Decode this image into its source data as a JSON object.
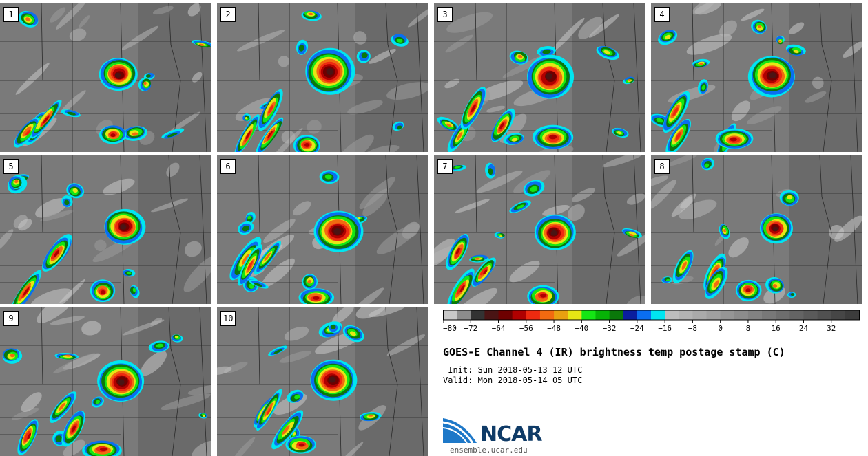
{
  "panels": [
    {
      "label": "1"
    },
    {
      "label": "2"
    },
    {
      "label": "3"
    },
    {
      "label": "4"
    },
    {
      "label": "5"
    },
    {
      "label": "6"
    },
    {
      "label": "7"
    },
    {
      "label": "8"
    },
    {
      "label": "9"
    },
    {
      "label": "10"
    }
  ],
  "chart_data": {
    "type": "heatmap",
    "title": "GOES-E Channel 4 (IR) brightness temp postage stamp (C)",
    "units": "C",
    "colorbar": {
      "min": -80,
      "max": 40,
      "step": 4,
      "tick_values": [
        -80,
        -72,
        -64,
        -56,
        -48,
        -40,
        -32,
        -24,
        -16,
        -8,
        0,
        8,
        16,
        24,
        32
      ],
      "tick_labels": [
        "−80",
        "−72",
        "−64",
        "−56",
        "−48",
        "−40",
        "−32",
        "−24",
        "−16",
        "−8",
        "0",
        "8",
        "16",
        "24",
        "32"
      ],
      "colors": [
        "#c8c8c8",
        "#8c8c8c",
        "#333333",
        "#4a1414",
        "#6e0000",
        "#b00000",
        "#ee2a10",
        "#f26a10",
        "#e8a010",
        "#e6e614",
        "#14e614",
        "#06b406",
        "#0a780a",
        "#0a1e9e",
        "#0a6ef0",
        "#00e6f0",
        "#bebebe",
        "#b4b4b4",
        "#aaaaaa",
        "#a0a0a0",
        "#969696",
        "#8c8c8c",
        "#828282",
        "#787878",
        "#6e6e6e",
        "#646464",
        "#5a5a5a",
        "#505050",
        "#464646",
        "#3c3c3c"
      ]
    }
  },
  "init_line": " Init: Sun 2018-05-13 12 UTC",
  "valid_line": "Valid: Mon 2018-05-14 05 UTC",
  "logo": {
    "name": "NCAR",
    "url": "ensemble.ucar.edu"
  }
}
